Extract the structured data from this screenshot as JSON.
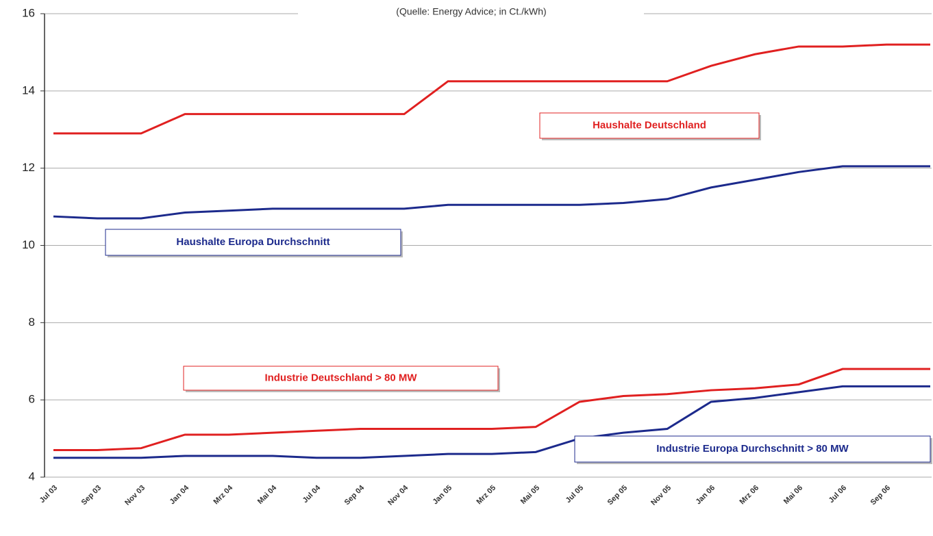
{
  "chart_data": {
    "type": "line",
    "subtitle": "(Quelle: Energy Advice; in Ct./kWh)",
    "categories": [
      "Jul 03",
      "Sep 03",
      "Nov 03",
      "Jan 04",
      "Mrz 04",
      "Mai 04",
      "Jul 04",
      "Sep 04",
      "Nov 04",
      "Jan 05",
      "Mrz 05",
      "Mai 05",
      "Jul 05",
      "Sep 05",
      "Nov 05",
      "Jan 06",
      "Mrz 06",
      "Mai 06",
      "Jul 06",
      "Sep 06",
      null
    ],
    "series": [
      {
        "name": "Haushalte Deutschland",
        "color": "#e02020",
        "values": [
          12.9,
          12.9,
          12.9,
          13.4,
          13.4,
          13.4,
          13.4,
          13.4,
          13.4,
          14.25,
          14.25,
          14.25,
          14.25,
          14.25,
          14.25,
          14.65,
          14.95,
          15.15,
          15.15,
          15.2,
          15.2
        ]
      },
      {
        "name": "Haushalte Europa Durchschnitt",
        "color": "#1c2a8c",
        "values": [
          10.75,
          10.7,
          10.7,
          10.85,
          10.9,
          10.95,
          10.95,
          10.95,
          10.95,
          11.05,
          11.05,
          11.05,
          11.05,
          11.1,
          11.2,
          11.5,
          11.7,
          11.9,
          12.05,
          12.05,
          12.05
        ]
      },
      {
        "name": "Industrie Deutschland > 80 MW",
        "color": "#e02020",
        "values": [
          4.7,
          4.7,
          4.75,
          5.1,
          5.1,
          5.15,
          5.2,
          5.25,
          5.25,
          5.25,
          5.25,
          5.3,
          5.95,
          6.1,
          6.15,
          6.25,
          6.3,
          6.4,
          6.8,
          6.8,
          6.8
        ]
      },
      {
        "name": "Industrie Europa Durchschnitt > 80 MW",
        "color": "#1c2a8c",
        "values": [
          4.5,
          4.5,
          4.5,
          4.55,
          4.55,
          4.55,
          4.5,
          4.5,
          4.55,
          4.6,
          4.6,
          4.65,
          5.0,
          5.15,
          5.25,
          5.95,
          6.05,
          6.2,
          6.35,
          6.35,
          6.35
        ]
      }
    ],
    "ylim": [
      4,
      16
    ],
    "yticks": [
      4,
      6,
      8,
      10,
      12,
      14,
      16
    ],
    "grid": true
  }
}
